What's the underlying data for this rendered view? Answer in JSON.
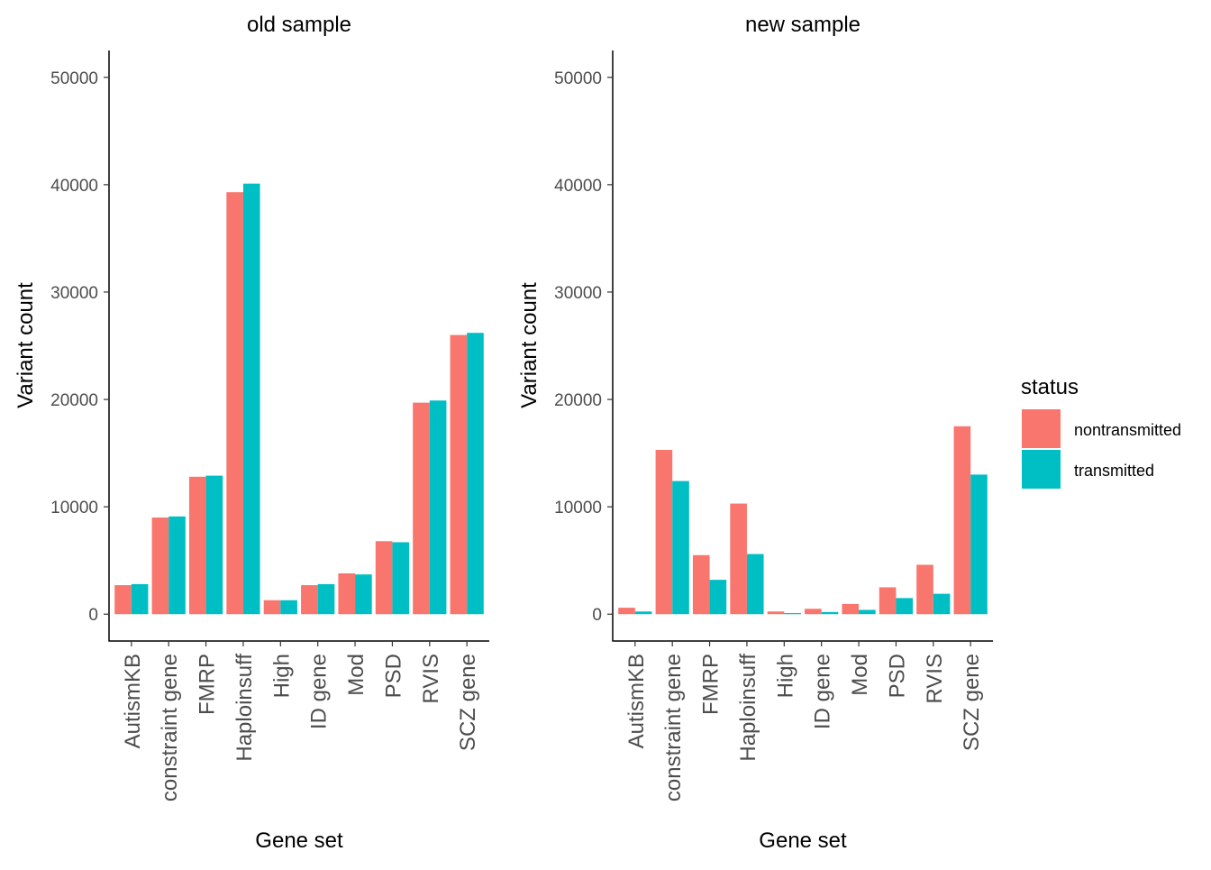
{
  "chart_data": [
    {
      "type": "bar",
      "title": "old sample",
      "xlabel": "Gene set",
      "ylabel": "Variant count",
      "ylim": [
        -2500,
        52500
      ],
      "yticks": [
        0,
        10000,
        20000,
        30000,
        40000,
        50000
      ],
      "categories": [
        "AutismKB",
        "constraint gene",
        "FMRP",
        "Haploinsuff",
        "High",
        "ID gene",
        "Mod",
        "PSD",
        "RVIS",
        "SCZ gene"
      ],
      "series": [
        {
          "name": "nontransmitted",
          "values": [
            2700,
            9000,
            12800,
            39300,
            1300,
            2700,
            3800,
            6800,
            19700,
            26000
          ]
        },
        {
          "name": "transmitted",
          "values": [
            2800,
            9100,
            12900,
            40100,
            1300,
            2800,
            3700,
            6700,
            19900,
            26200
          ]
        }
      ]
    },
    {
      "type": "bar",
      "title": "new sample",
      "xlabel": "Gene set",
      "ylabel": "Variant count",
      "ylim": [
        -2500,
        52500
      ],
      "yticks": [
        0,
        10000,
        20000,
        30000,
        40000,
        50000
      ],
      "categories": [
        "AutismKB",
        "constraint gene",
        "FMRP",
        "Haploinsuff",
        "High",
        "ID gene",
        "Mod",
        "PSD",
        "RVIS",
        "SCZ gene"
      ],
      "series": [
        {
          "name": "nontransmitted",
          "values": [
            600,
            15300,
            5500,
            10300,
            250,
            500,
            950,
            2500,
            4600,
            17500
          ]
        },
        {
          "name": "transmitted",
          "values": [
            250,
            12400,
            3200,
            5600,
            100,
            200,
            400,
            1500,
            1900,
            13000
          ]
        }
      ]
    }
  ],
  "legend": {
    "title": "status",
    "placement": "right",
    "items": [
      {
        "label": "nontransmitted",
        "color": "#F8766D"
      },
      {
        "label": "transmitted",
        "color": "#00BFC4"
      }
    ]
  },
  "colors": {
    "nontransmitted": "#F8766D",
    "transmitted": "#00BFC4"
  }
}
